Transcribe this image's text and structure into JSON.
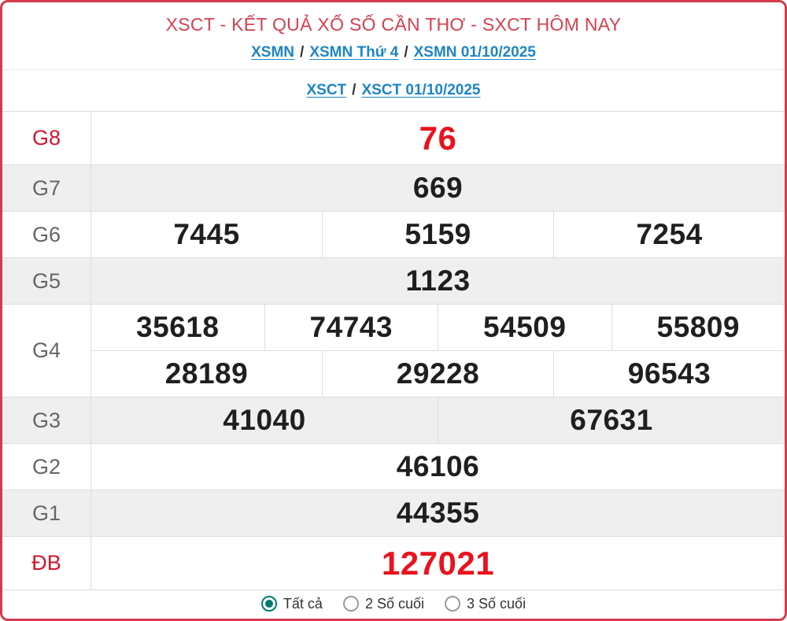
{
  "header": {
    "title": "XSCT - KẾT QUẢ XỔ SỐ CẦN THƠ - SXCT HÔM NAY",
    "breadcrumb_main": {
      "separator": "/",
      "items": [
        "XSMN",
        "XSMN Thứ 4",
        "XSMN 01/10/2025"
      ]
    },
    "breadcrumb_sub": {
      "separator": "/",
      "items": [
        "XSCT",
        "XSCT 01/10/2025"
      ]
    }
  },
  "results": {
    "rows": [
      {
        "label": "G8",
        "highlight": true,
        "groups": [
          [
            "76"
          ]
        ]
      },
      {
        "label": "G7",
        "highlight": false,
        "groups": [
          [
            "669"
          ]
        ]
      },
      {
        "label": "G6",
        "highlight": false,
        "groups": [
          [
            "7445",
            "5159",
            "7254"
          ]
        ]
      },
      {
        "label": "G5",
        "highlight": false,
        "groups": [
          [
            "1123"
          ]
        ]
      },
      {
        "label": "G4",
        "highlight": false,
        "groups": [
          [
            "35618",
            "74743",
            "54509",
            "55809"
          ],
          [
            "28189",
            "29228",
            "96543"
          ]
        ]
      },
      {
        "label": "G3",
        "highlight": false,
        "groups": [
          [
            "41040",
            "67631"
          ]
        ]
      },
      {
        "label": "G2",
        "highlight": false,
        "groups": [
          [
            "46106"
          ]
        ]
      },
      {
        "label": "G1",
        "highlight": false,
        "groups": [
          [
            "44355"
          ]
        ]
      },
      {
        "label": "ĐB",
        "highlight": true,
        "groups": [
          [
            "127021"
          ]
        ]
      }
    ]
  },
  "filter": {
    "options": [
      {
        "label": "Tất cả",
        "selected": true
      },
      {
        "label": "2 Số cuối",
        "selected": false
      },
      {
        "label": "3 Số cuối",
        "selected": false
      }
    ]
  },
  "colors": {
    "border-red": "#d23c4e",
    "title-red": "#d5414f",
    "value-red": "#e8131d",
    "label-red": "#d2152e",
    "link-blue": "#1e85c7",
    "row-gray": "#efefef",
    "line-gray": "#dcdcdc",
    "header-line": "#e9e9e9",
    "teal": "#00796b",
    "text-dark": "#1f1f1f",
    "label-gray": "#666666"
  }
}
